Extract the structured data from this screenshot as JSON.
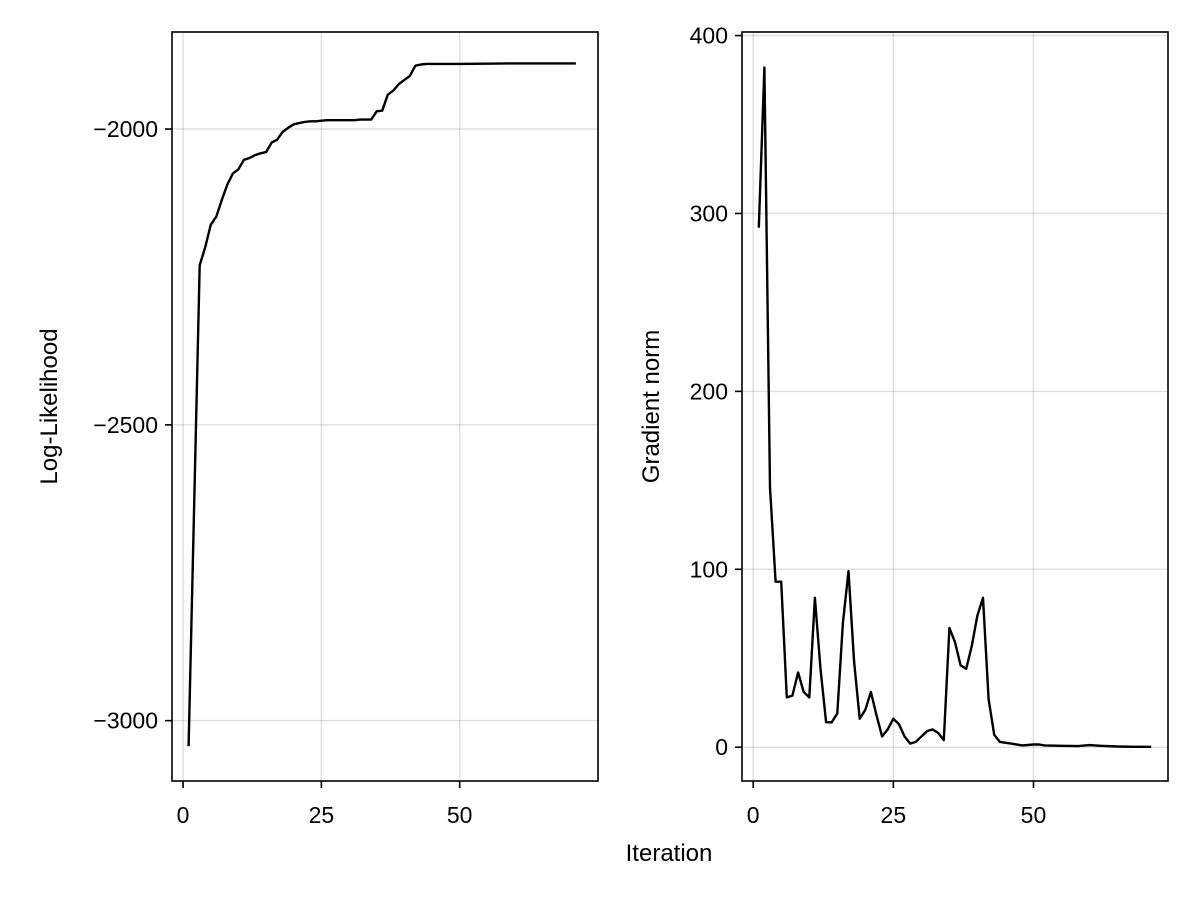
{
  "shared_xlabel": "Iteration",
  "chart_data": [
    {
      "type": "line",
      "title": "",
      "xlabel": "",
      "ylabel": "Log-Likelihood",
      "xlim": [
        -2,
        75
      ],
      "ylim": [
        -3102,
        -1836
      ],
      "xticks": [
        0,
        25,
        50
      ],
      "xtick_labels": [
        "0",
        "25",
        "50"
      ],
      "yticks": [
        -3000,
        -2500,
        -2000
      ],
      "ytick_labels": [
        "−3000",
        "−2500",
        "−2000"
      ],
      "grid": true,
      "series": [
        {
          "color": "#000000",
          "x": [
            1,
            3,
            4,
            5,
            6,
            7,
            8,
            9,
            10,
            11,
            12,
            13,
            14,
            15,
            16,
            17,
            18,
            19,
            20,
            21,
            22,
            23,
            24,
            25,
            26,
            27,
            28,
            29,
            30,
            31,
            32,
            33,
            34,
            35,
            36,
            37,
            38,
            39,
            40,
            41,
            42,
            43,
            44,
            45,
            46,
            50,
            60,
            70,
            71
          ],
          "y": [
            -3043,
            -2230,
            -2200,
            -2162,
            -2148,
            -2120,
            -2094,
            -2075,
            -2068,
            -2052,
            -2049,
            -2044,
            -2041,
            -2039,
            -2023,
            -2018,
            -2005,
            -1998,
            -1992,
            -1990,
            -1988,
            -1987,
            -1987,
            -1986,
            -1985,
            -1985,
            -1985,
            -1985,
            -1985,
            -1985,
            -1984,
            -1984,
            -1984,
            -1970,
            -1969,
            -1942,
            -1935,
            -1924,
            -1917,
            -1910,
            -1893,
            -1891,
            -1890,
            -1890,
            -1890,
            -1890,
            -1889,
            -1889,
            -1889
          ]
        }
      ]
    },
    {
      "type": "line",
      "title": "",
      "xlabel": "",
      "ylabel": "Gradient norm",
      "xlim": [
        -2,
        74
      ],
      "ylim": [
        -19,
        402
      ],
      "xticks": [
        0,
        25,
        50
      ],
      "xtick_labels": [
        "0",
        "25",
        "50"
      ],
      "yticks": [
        0,
        100,
        200,
        300,
        400
      ],
      "ytick_labels": [
        "0",
        "100",
        "200",
        "300",
        "400"
      ],
      "grid": true,
      "series": [
        {
          "color": "#000000",
          "x": [
            1,
            2,
            3,
            4,
            5,
            6,
            7,
            8,
            9,
            10,
            11,
            12,
            13,
            14,
            15,
            16,
            17,
            18,
            19,
            20,
            21,
            22,
            23,
            24,
            25,
            26,
            27,
            28,
            29,
            30,
            31,
            32,
            33,
            34,
            35,
            36,
            37,
            38,
            39,
            40,
            41,
            42,
            43,
            44,
            46,
            48,
            50,
            51,
            52,
            55,
            58,
            60,
            62,
            65,
            68,
            71
          ],
          "y": [
            292,
            382,
            146,
            93,
            93,
            28,
            29,
            42,
            31,
            28,
            84,
            44,
            14,
            14,
            19,
            70,
            99,
            48,
            16,
            21,
            31,
            18,
            6,
            10,
            16,
            13,
            6,
            2,
            3,
            6,
            9,
            10,
            8,
            4,
            67,
            59,
            46,
            44,
            57,
            74,
            84,
            27,
            7,
            3,
            2,
            1,
            1.5,
            1.5,
            1,
            0.8,
            0.6,
            1.2,
            0.8,
            0.4,
            0.2,
            0.2
          ]
        }
      ]
    }
  ]
}
